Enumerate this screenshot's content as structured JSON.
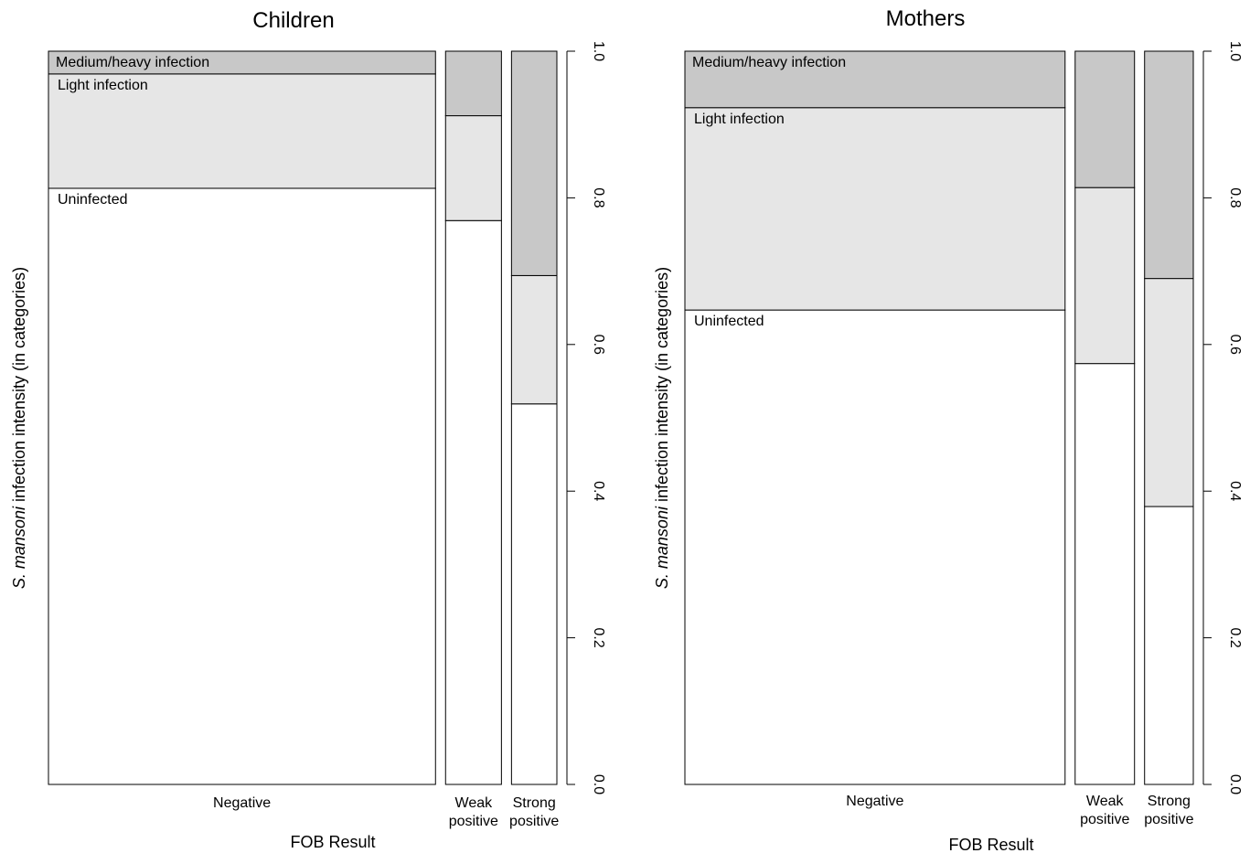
{
  "chart_data": [
    {
      "type": "mosaic",
      "title": "Children",
      "xlabel": "FOB Result",
      "ylabel_italic": "S. mansoni",
      "ylabel_rest": " infection intensity (in categories)",
      "ylim": [
        0,
        1
      ],
      "yticks": [
        "0.0",
        "0.2",
        "0.4",
        "0.6",
        "0.8",
        "1.0"
      ],
      "segment_labels": [
        "Uninfected",
        "Light infection",
        "Medium/heavy infection"
      ],
      "colors": {
        "Uninfected": "#ffffff",
        "Light infection": "#e6e6e6",
        "Medium/heavy infection": "#c8c8c8"
      },
      "columns": [
        {
          "label_lines": [
            "Negative"
          ],
          "width_share": 0.776,
          "proportions": [
            0.813,
            0.156,
            0.031
          ]
        },
        {
          "label_lines": [
            "Weak",
            "positive"
          ],
          "width_share": 0.112,
          "proportions": [
            0.769,
            0.143,
            0.088
          ]
        },
        {
          "label_lines": [
            "Strong",
            "positive"
          ],
          "width_share": 0.091,
          "proportions": [
            0.519,
            0.175,
            0.306
          ]
        }
      ]
    },
    {
      "type": "mosaic",
      "title": "Mothers",
      "xlabel": "FOB Result",
      "ylabel_italic": "S. mansoni",
      "ylabel_rest": " infection intensity (in categories)",
      "ylim": [
        0,
        1
      ],
      "yticks": [
        "0.0",
        "0.2",
        "0.4",
        "0.6",
        "0.8",
        "1.0"
      ],
      "segment_labels": [
        "Uninfected",
        "Light infection",
        "Medium/heavy infection"
      ],
      "colors": {
        "Uninfected": "#ffffff",
        "Light infection": "#e6e6e6",
        "Medium/heavy infection": "#c8c8c8"
      },
      "columns": [
        {
          "label_lines": [
            "Negative"
          ],
          "width_share": 0.749,
          "proportions": [
            0.647,
            0.276,
            0.077
          ]
        },
        {
          "label_lines": [
            "Weak",
            "positive"
          ],
          "width_share": 0.117,
          "proportions": [
            0.574,
            0.24,
            0.186
          ]
        },
        {
          "label_lines": [
            "Strong",
            "positive"
          ],
          "width_share": 0.096,
          "proportions": [
            0.379,
            0.311,
            0.31
          ]
        }
      ]
    }
  ]
}
